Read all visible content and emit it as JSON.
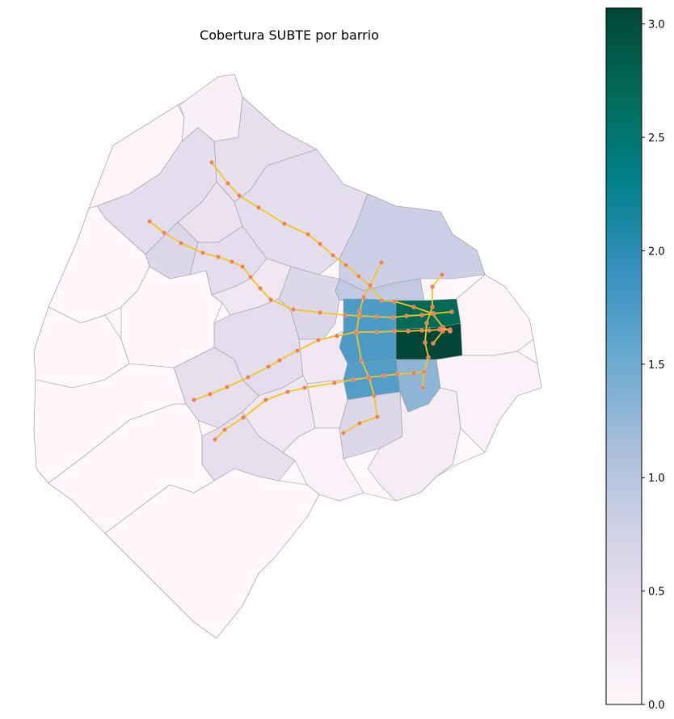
{
  "title": "Cobertura SUBTE por barrio",
  "colorbar": {
    "min": 0.0,
    "max": 3.07,
    "ticks": [
      "0.0",
      "0.5",
      "1.0",
      "1.5",
      "2.0",
      "2.5",
      "3.0"
    ],
    "tick_values": [
      0.0,
      0.5,
      1.0,
      1.5,
      2.0,
      2.5,
      3.0
    ],
    "colormap": "PuBuGn",
    "colors": [
      "#fff7fb",
      "#ece2f0",
      "#d0d1e6",
      "#a6bddb",
      "#67a9cf",
      "#3690c0",
      "#02818a",
      "#016c59",
      "#014636"
    ]
  },
  "colors": {
    "subte_line": "#f5c518",
    "station": "#f08040",
    "border": "#999999"
  },
  "neighborhood_values": [
    {
      "id": "centro-norte",
      "value": 2.7
    },
    {
      "id": "centro-sur",
      "value": 3.07
    },
    {
      "id": "balvanera",
      "value": 1.75
    },
    {
      "id": "san-cristobal",
      "value": 1.7
    },
    {
      "id": "constitucion",
      "value": 1.3
    },
    {
      "id": "recoleta",
      "value": 0.9
    },
    {
      "id": "palermo",
      "value": 0.8
    },
    {
      "id": "almagro",
      "value": 0.6
    },
    {
      "id": "caballito",
      "value": 0.5
    },
    {
      "id": "flores",
      "value": 0.45
    },
    {
      "id": "parque-patricios",
      "value": 0.6
    },
    {
      "id": "belgrano",
      "value": 0.45
    },
    {
      "id": "colegiales",
      "value": 0.5
    },
    {
      "id": "villa-urquiza",
      "value": 0.5
    },
    {
      "id": "chacarita",
      "value": 0.4
    },
    {
      "id": "villa-crespo",
      "value": 0.5
    },
    {
      "id": "barracas",
      "value": 0.2
    },
    {
      "id": "boca",
      "value": 0.1
    },
    {
      "id": "nunez",
      "value": 0.15
    },
    {
      "id": "periphery",
      "value": 0.0
    }
  ]
}
